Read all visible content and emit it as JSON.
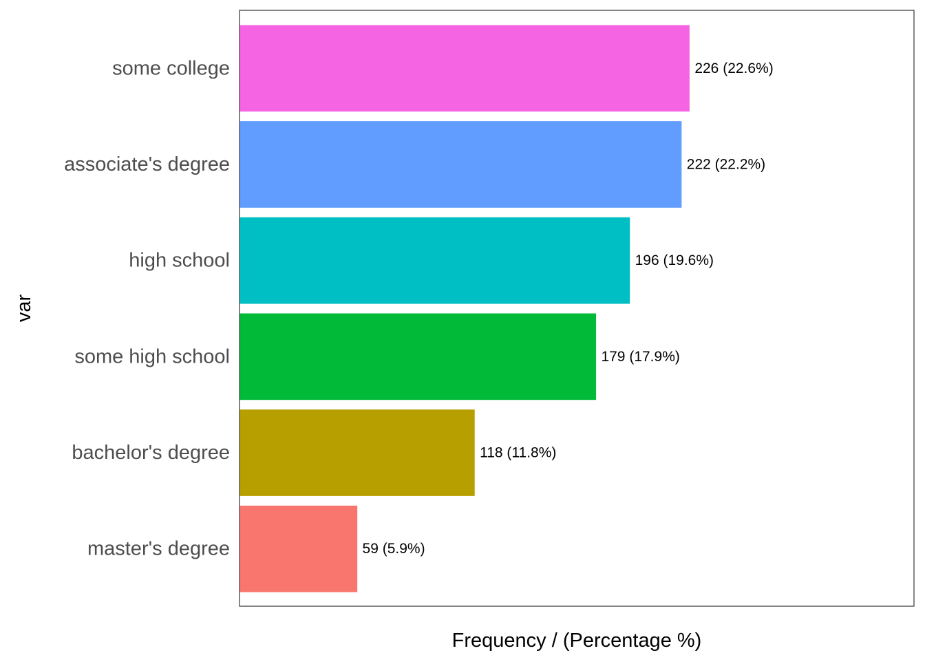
{
  "chart_data": {
    "type": "bar",
    "orientation": "horizontal",
    "title": "",
    "xlabel": "Frequency / (Percentage %)",
    "ylabel": "var",
    "categories": [
      "some college",
      "associate's degree",
      "high school",
      "some high school",
      "bachelor's degree",
      "master's degree"
    ],
    "values": [
      226,
      222,
      196,
      179,
      118,
      59
    ],
    "labels": [
      "226 (22.6%)",
      "222 (22.2%)",
      "196 (19.6%)",
      "179 (17.9%)",
      "118 (11.8%)",
      "59 (5.9%)"
    ],
    "colors": [
      "#F564E3",
      "#619CFF",
      "#00BFC4",
      "#00BA38",
      "#B79F00",
      "#F8766D"
    ],
    "xlim": [
      0,
      339
    ],
    "grid": false,
    "legend": "none"
  }
}
